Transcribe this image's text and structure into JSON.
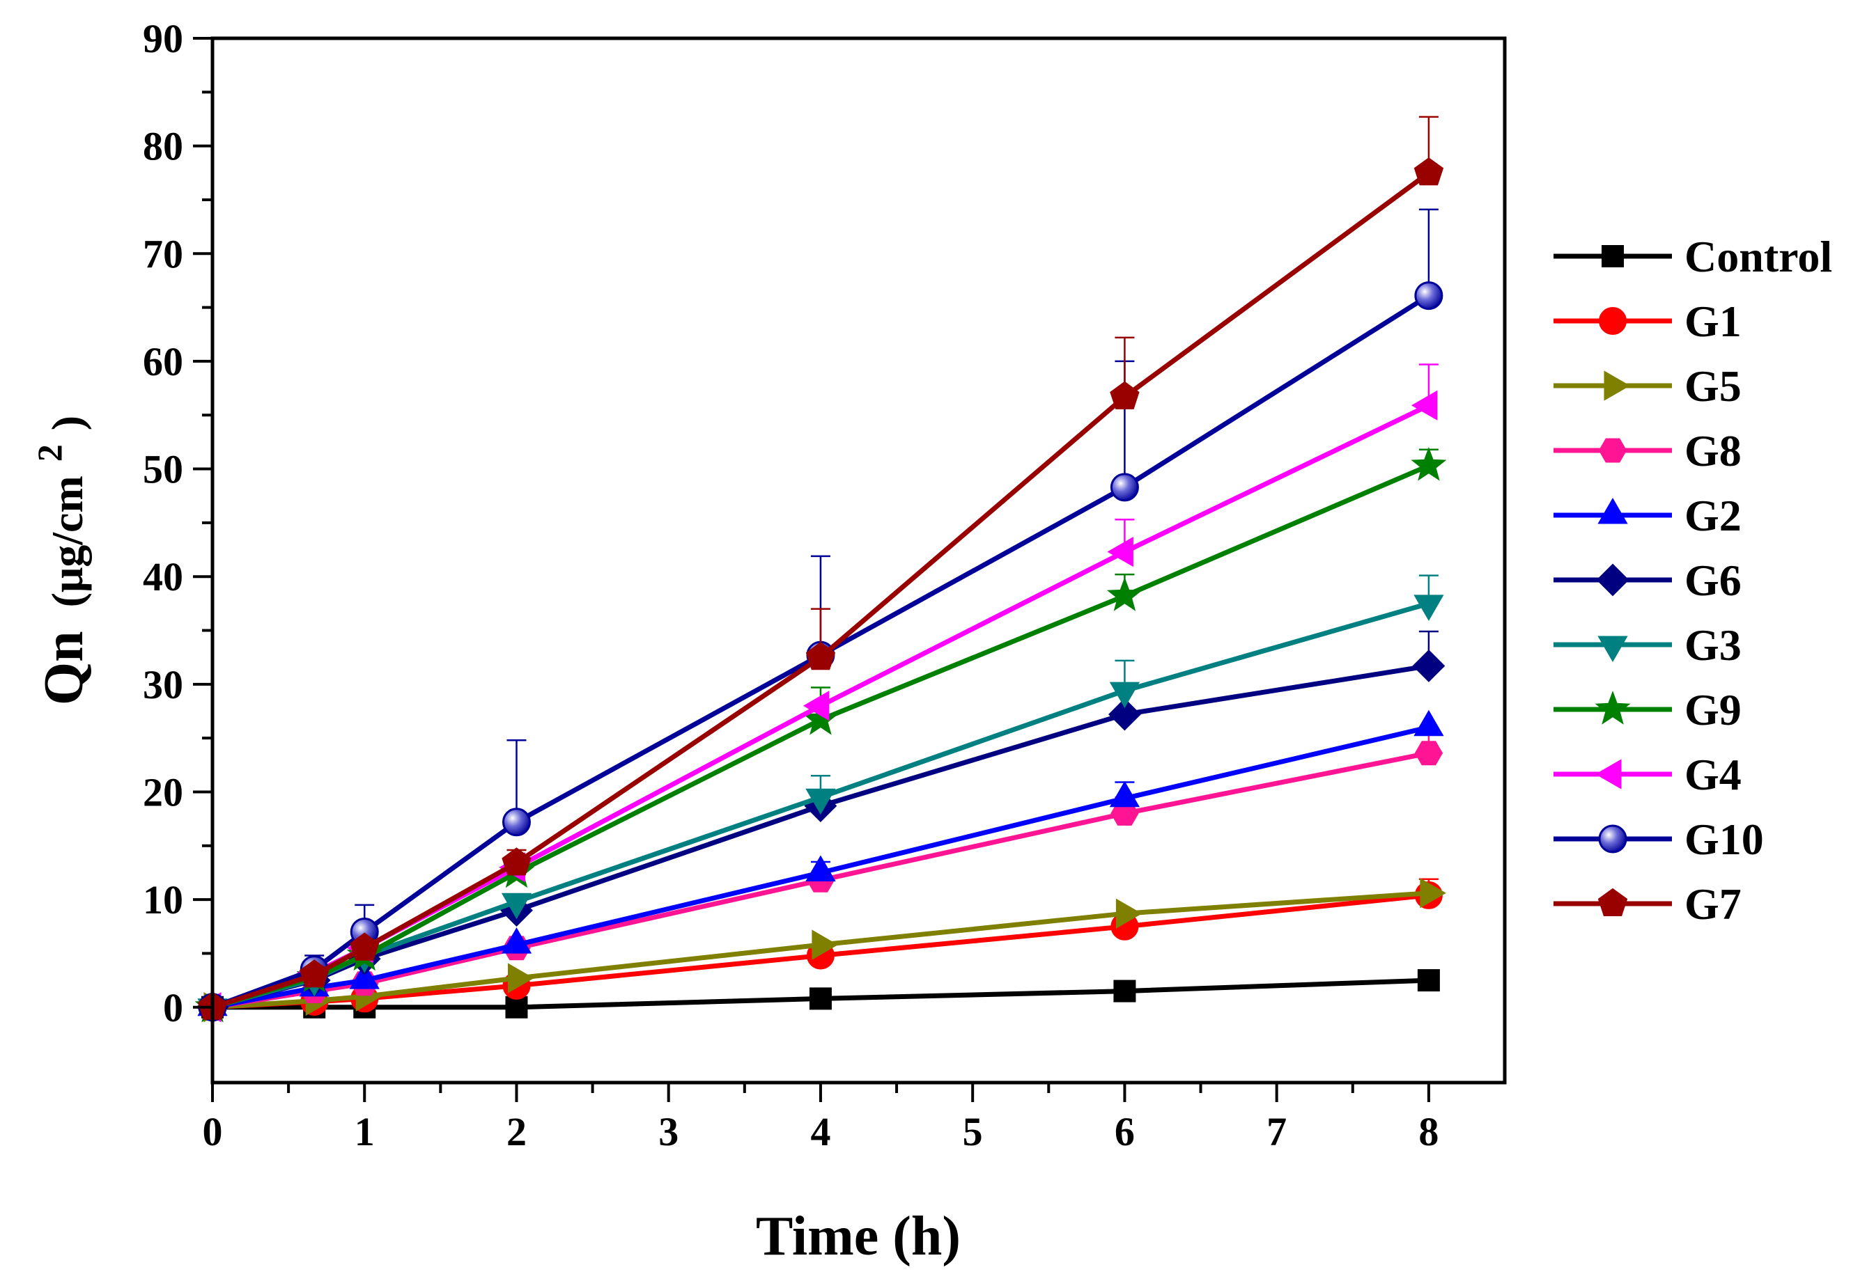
{
  "chart_data": {
    "type": "line",
    "xlabel": "Time (h)",
    "ylabel": {
      "main": "Qn",
      "unit": "(μg/cm",
      "sup": "2",
      "close": ")"
    },
    "xlim": [
      0,
      8.5
    ],
    "ylim": [
      -7,
      90
    ],
    "x_ticks": [
      0,
      1,
      2,
      3,
      4,
      5,
      6,
      7,
      8
    ],
    "y_ticks": [
      0,
      10,
      20,
      30,
      40,
      50,
      60,
      70,
      80,
      90
    ],
    "grid": false,
    "legend_position": "right",
    "x": [
      0,
      0.67,
      1,
      2,
      4,
      6,
      8
    ],
    "series": [
      {
        "name": "Control",
        "color": "#000000",
        "marker": "square",
        "values": [
          0,
          0,
          0,
          0,
          0.8,
          1.5,
          2.5
        ],
        "errors": [
          0,
          0,
          0,
          0,
          0,
          0,
          0
        ]
      },
      {
        "name": "G1",
        "color": "#ff0000",
        "marker": "circle",
        "values": [
          0,
          0.5,
          0.8,
          2.0,
          4.8,
          7.5,
          10.4
        ],
        "errors": [
          0,
          0,
          0,
          0.3,
          0.5,
          1.0,
          1.5
        ]
      },
      {
        "name": "G5",
        "color": "#808000",
        "marker": "triangle-right",
        "values": [
          0,
          0.6,
          1.0,
          2.7,
          5.8,
          8.7,
          10.6
        ],
        "errors": [
          0,
          0,
          0,
          0,
          0,
          0,
          0
        ]
      },
      {
        "name": "G8",
        "color": "#ff1493",
        "marker": "hexagon",
        "values": [
          0,
          1.5,
          2.2,
          5.5,
          11.8,
          18.0,
          23.6
        ],
        "errors": [
          0,
          0,
          0,
          0,
          0.5,
          1.5,
          1.8
        ]
      },
      {
        "name": "G2",
        "color": "#0000ff",
        "marker": "triangle-up",
        "values": [
          0,
          1.8,
          2.5,
          5.8,
          12.5,
          19.4,
          26.0
        ],
        "errors": [
          0,
          0,
          0,
          0,
          1.0,
          1.5,
          0
        ]
      },
      {
        "name": "G6",
        "color": "#000080",
        "marker": "diamond",
        "values": [
          0,
          2.5,
          4.5,
          9.0,
          18.7,
          27.2,
          31.7
        ],
        "errors": [
          0,
          0,
          0,
          1.0,
          1.5,
          0,
          3.2
        ]
      },
      {
        "name": "G3",
        "color": "#008080",
        "marker": "triangle-down",
        "values": [
          0,
          2.6,
          4.8,
          9.8,
          19.5,
          29.4,
          37.5
        ],
        "errors": [
          0,
          0,
          0,
          0,
          2.0,
          2.8,
          2.6
        ]
      },
      {
        "name": "G9",
        "color": "#008000",
        "marker": "star",
        "values": [
          0,
          2.8,
          4.8,
          12.5,
          26.7,
          38.2,
          50.3
        ],
        "errors": [
          0,
          0,
          0,
          0,
          3.0,
          2.0,
          1.5
        ]
      },
      {
        "name": "G4",
        "color": "#ff00ff",
        "marker": "triangle-left",
        "values": [
          0,
          3.2,
          5.5,
          13.0,
          28.0,
          42.3,
          55.9
        ],
        "errors": [
          0,
          0,
          0,
          0,
          0,
          3.0,
          3.8
        ]
      },
      {
        "name": "G10",
        "color": "#000099",
        "marker": "sphere",
        "values": [
          0,
          3.5,
          7.0,
          17.2,
          32.7,
          48.3,
          66.1
        ],
        "errors": [
          0,
          1.3,
          2.5,
          7.6,
          9.2,
          11.7,
          8.0
        ]
      },
      {
        "name": "G7",
        "color": "#990000",
        "marker": "pentagon",
        "values": [
          0,
          3.0,
          5.5,
          13.4,
          32.5,
          56.7,
          77.5
        ],
        "errors": [
          0,
          0,
          0,
          1.2,
          4.5,
          5.5,
          5.2
        ]
      }
    ]
  }
}
